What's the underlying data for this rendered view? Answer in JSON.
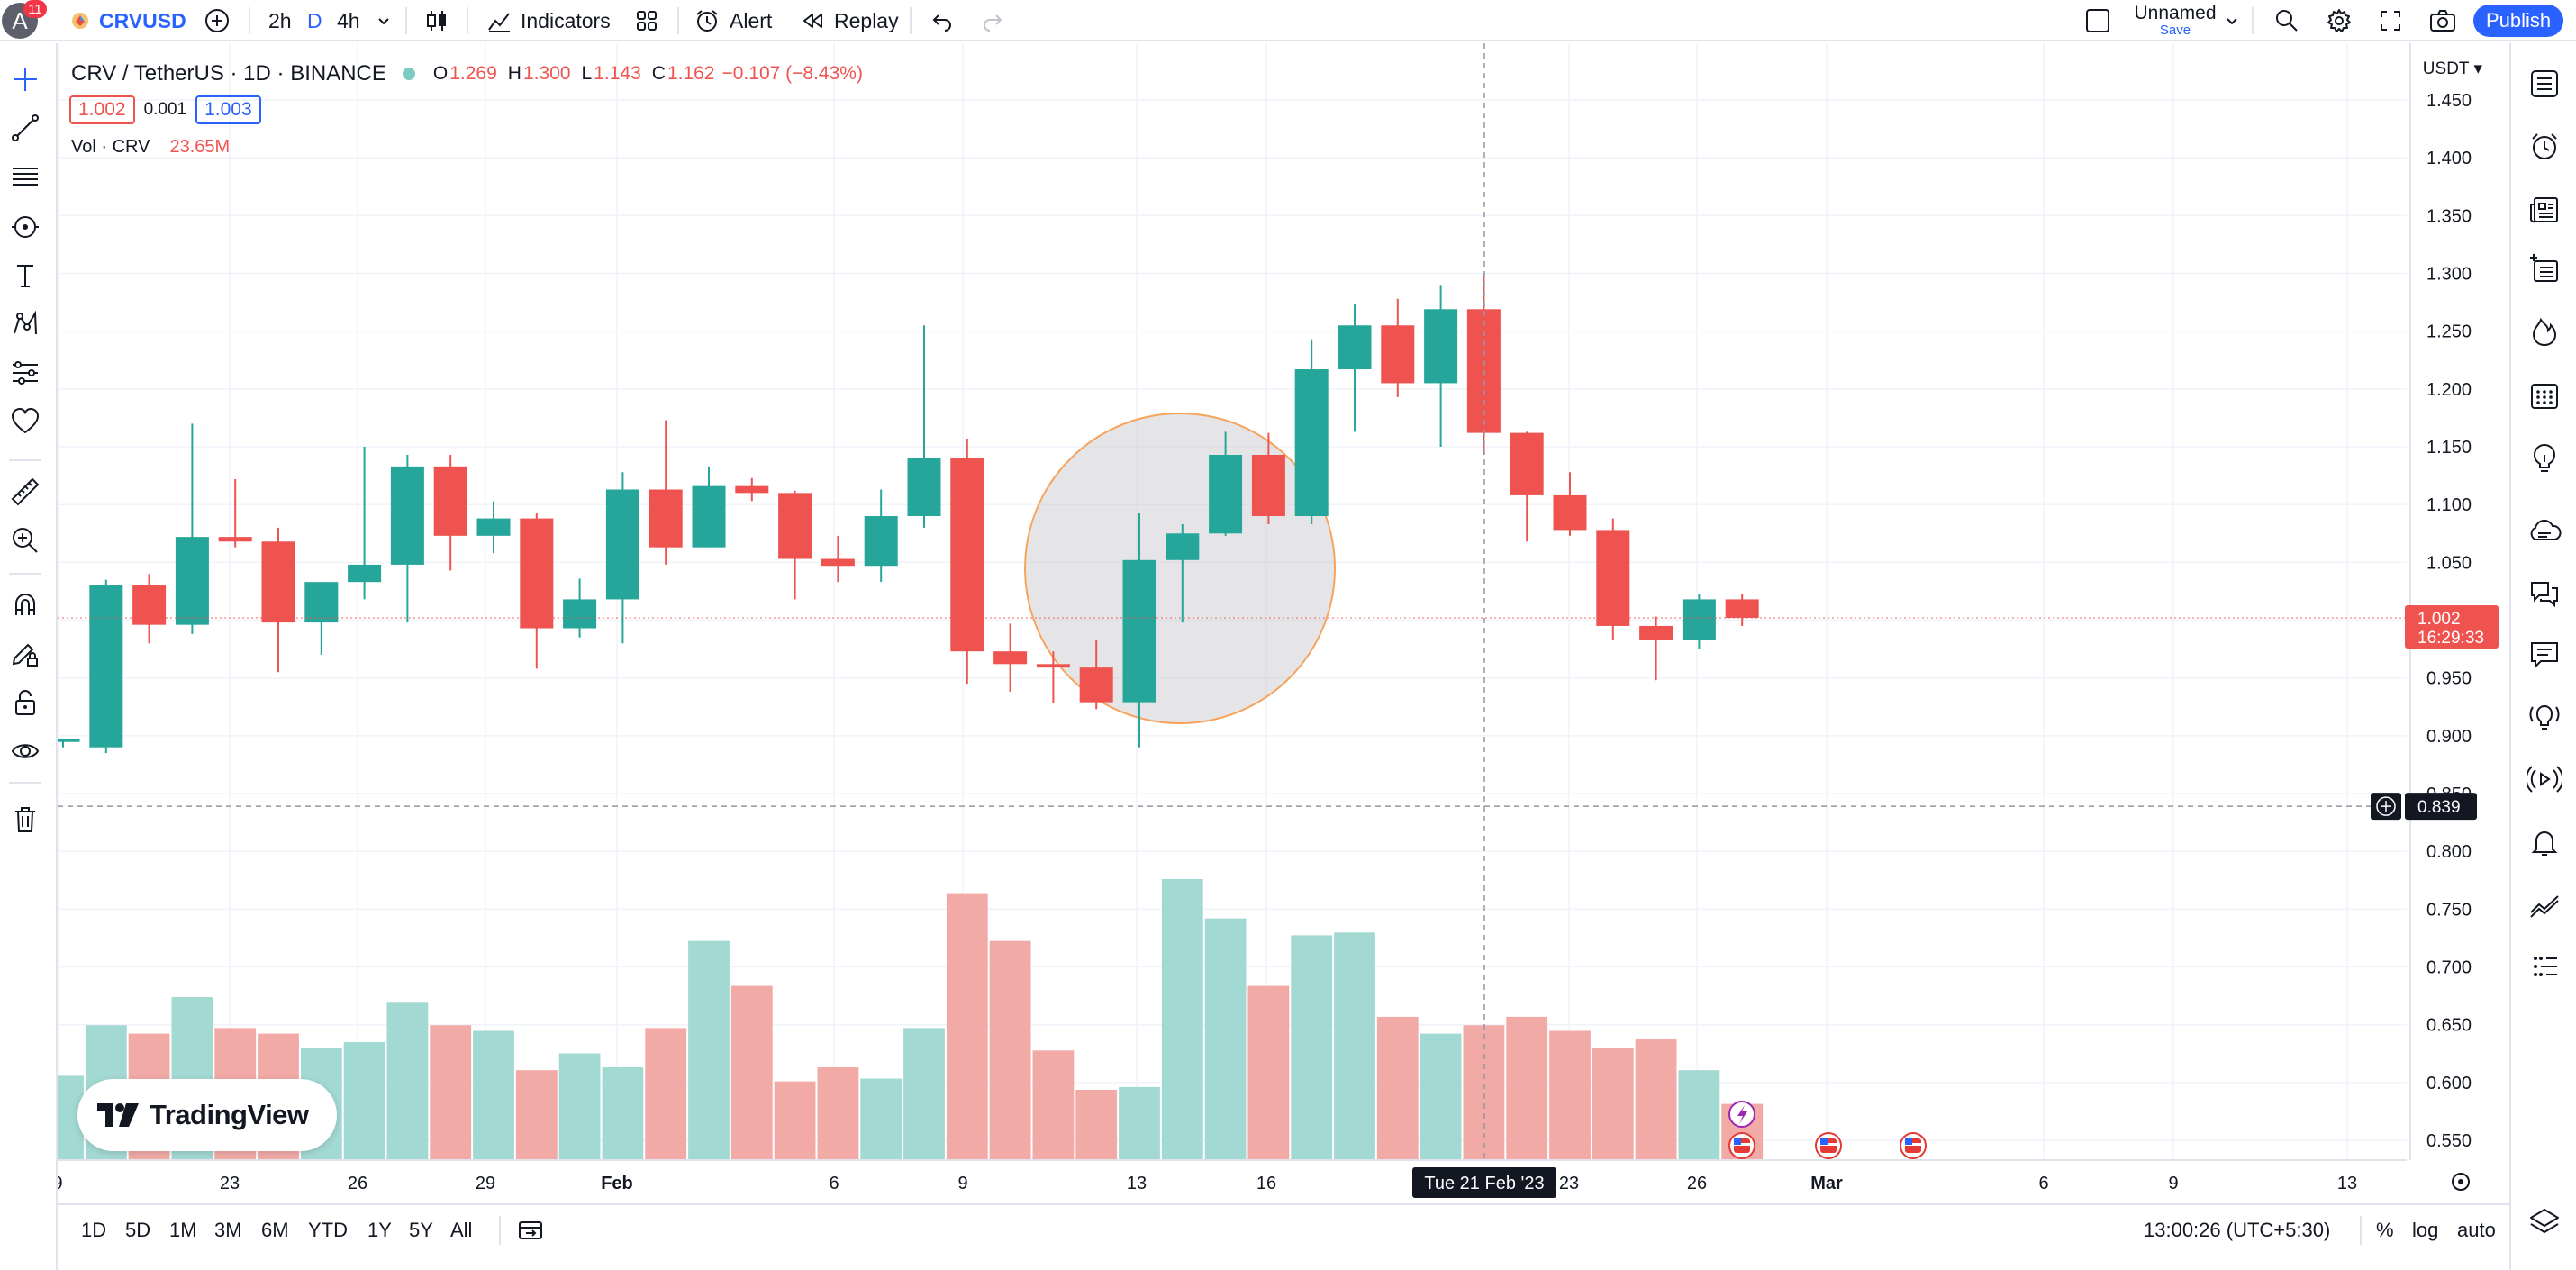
{
  "topbar": {
    "avatar_letter": "A",
    "notification_count": "11",
    "symbol": "CRVUSD",
    "intervals": [
      "2h",
      "D",
      "4h"
    ],
    "indicators_label": "Indicators",
    "alert_label": "Alert",
    "replay_label": "Replay",
    "layout_name": "Unnamed",
    "save_label": "Save",
    "publish_label": "Publish"
  },
  "legend": {
    "title": "CRV / TetherUS · 1D · BINANCE",
    "o_label": "O",
    "o_value": "1.269",
    "h_label": "H",
    "h_value": "1.300",
    "l_label": "L",
    "l_value": "1.143",
    "c_label": "C",
    "c_value": "1.162",
    "change": "−0.107 (−8.43%)",
    "bid": "1.002",
    "spread": "0.001",
    "ask": "1.003",
    "vol_label": "Vol · CRV",
    "vol_value": "23.65M"
  },
  "price_scale": {
    "currency": "USDT",
    "ticks": [
      "1.450",
      "1.400",
      "1.350",
      "1.300",
      "1.250",
      "1.200",
      "1.150",
      "1.100",
      "1.050",
      "1.000",
      "0.950",
      "0.900",
      "0.850",
      "0.800",
      "0.750",
      "0.700",
      "0.650",
      "0.600",
      "0.550"
    ],
    "last_price": "1.002",
    "countdown": "16:29:33",
    "crosshair_price": "0.839"
  },
  "time_scale": {
    "labels": [
      "9",
      "23",
      "26",
      "29",
      "Feb",
      "6",
      "9",
      "13",
      "16",
      "23",
      "26",
      "Mar",
      "6",
      "9",
      "13"
    ],
    "crosshair_label": "Tue 21 Feb '23"
  },
  "bottombar": {
    "ranges": [
      "1D",
      "5D",
      "1M",
      "3M",
      "6M",
      "YTD",
      "1Y",
      "5Y",
      "All"
    ],
    "clock": "13:00:26 (UTC+5:30)",
    "percent_label": "%",
    "log_label": "log",
    "auto_label": "auto"
  },
  "logo": {
    "text": "TradingView"
  },
  "colors": {
    "up": "#26a69a",
    "down": "#ef5350",
    "accent": "#2962ff",
    "circle_stroke": "#f7a35c"
  },
  "chart_data": {
    "type": "candlestick",
    "title": "CRV / TetherUS · 1D · BINANCE",
    "ylim": [
      0.53,
      1.47
    ],
    "candles": [
      {
        "o": 0.895,
        "h": 0.895,
        "l": 0.89,
        "c": 0.897
      },
      {
        "o": 0.89,
        "h": 1.035,
        "l": 0.885,
        "c": 1.03
      },
      {
        "o": 1.03,
        "h": 1.04,
        "l": 0.98,
        "c": 0.996
      },
      {
        "o": 0.996,
        "h": 1.17,
        "l": 0.988,
        "c": 1.072
      },
      {
        "o": 1.072,
        "h": 1.122,
        "l": 1.063,
        "c": 1.068
      },
      {
        "o": 1.068,
        "h": 1.08,
        "l": 0.955,
        "c": 0.998
      },
      {
        "o": 0.998,
        "h": 1.033,
        "l": 0.97,
        "c": 1.033
      },
      {
        "o": 1.033,
        "h": 1.15,
        "l": 1.018,
        "c": 1.048
      },
      {
        "o": 1.048,
        "h": 1.143,
        "l": 0.998,
        "c": 1.133
      },
      {
        "o": 1.133,
        "h": 1.143,
        "l": 1.043,
        "c": 1.073
      },
      {
        "o": 1.073,
        "h": 1.103,
        "l": 1.058,
        "c": 1.088
      },
      {
        "o": 1.088,
        "h": 1.093,
        "l": 0.958,
        "c": 0.993
      },
      {
        "o": 0.993,
        "h": 1.036,
        "l": 0.985,
        "c": 1.018
      },
      {
        "o": 1.018,
        "h": 1.128,
        "l": 0.98,
        "c": 1.113
      },
      {
        "o": 1.113,
        "h": 1.173,
        "l": 1.048,
        "c": 1.063
      },
      {
        "o": 1.063,
        "h": 1.133,
        "l": 1.063,
        "c": 1.116
      },
      {
        "o": 1.116,
        "h": 1.123,
        "l": 1.103,
        "c": 1.11
      },
      {
        "o": 1.11,
        "h": 1.112,
        "l": 1.018,
        "c": 1.053
      },
      {
        "o": 1.053,
        "h": 1.073,
        "l": 1.033,
        "c": 1.047
      },
      {
        "o": 1.047,
        "h": 1.113,
        "l": 1.033,
        "c": 1.09
      },
      {
        "o": 1.09,
        "h": 1.255,
        "l": 1.08,
        "c": 1.14
      },
      {
        "o": 1.14,
        "h": 1.157,
        "l": 0.945,
        "c": 0.973
      },
      {
        "o": 0.973,
        "h": 0.997,
        "l": 0.938,
        "c": 0.962
      },
      {
        "o": 0.962,
        "h": 0.973,
        "l": 0.928,
        "c": 0.959
      },
      {
        "o": 0.959,
        "h": 0.983,
        "l": 0.923,
        "c": 0.929
      },
      {
        "o": 0.929,
        "h": 1.093,
        "l": 0.89,
        "c": 1.052
      },
      {
        "o": 1.052,
        "h": 1.083,
        "l": 0.998,
        "c": 1.075
      },
      {
        "o": 1.075,
        "h": 1.163,
        "l": 1.073,
        "c": 1.143
      },
      {
        "o": 1.143,
        "h": 1.162,
        "l": 1.083,
        "c": 1.09
      },
      {
        "o": 1.09,
        "h": 1.243,
        "l": 1.083,
        "c": 1.217
      },
      {
        "o": 1.217,
        "h": 1.273,
        "l": 1.163,
        "c": 1.255
      },
      {
        "o": 1.255,
        "h": 1.278,
        "l": 1.193,
        "c": 1.205
      },
      {
        "o": 1.205,
        "h": 1.29,
        "l": 1.15,
        "c": 1.269
      },
      {
        "o": 1.269,
        "h": 1.3,
        "l": 1.143,
        "c": 1.162
      },
      {
        "o": 1.162,
        "h": 1.163,
        "l": 1.068,
        "c": 1.108
      },
      {
        "o": 1.108,
        "h": 1.128,
        "l": 1.073,
        "c": 1.078
      },
      {
        "o": 1.078,
        "h": 1.088,
        "l": 0.983,
        "c": 0.995
      },
      {
        "o": 0.995,
        "h": 1.003,
        "l": 0.948,
        "c": 0.983
      },
      {
        "o": 0.983,
        "h": 1.023,
        "l": 0.975,
        "c": 1.018
      },
      {
        "o": 1.018,
        "h": 1.023,
        "l": 0.995,
        "c": 1.002
      }
    ],
    "volume_relative": [
      0.3,
      0.48,
      0.45,
      0.58,
      0.47,
      0.45,
      0.4,
      0.42,
      0.56,
      0.48,
      0.46,
      0.32,
      0.38,
      0.33,
      0.47,
      0.78,
      0.62,
      0.28,
      0.33,
      0.29,
      0.47,
      0.95,
      0.78,
      0.39,
      0.25,
      0.26,
      1.0,
      0.86,
      0.62,
      0.8,
      0.81,
      0.51,
      0.45,
      0.48,
      0.51,
      0.46,
      0.4,
      0.43,
      0.32,
      0.2
    ]
  }
}
